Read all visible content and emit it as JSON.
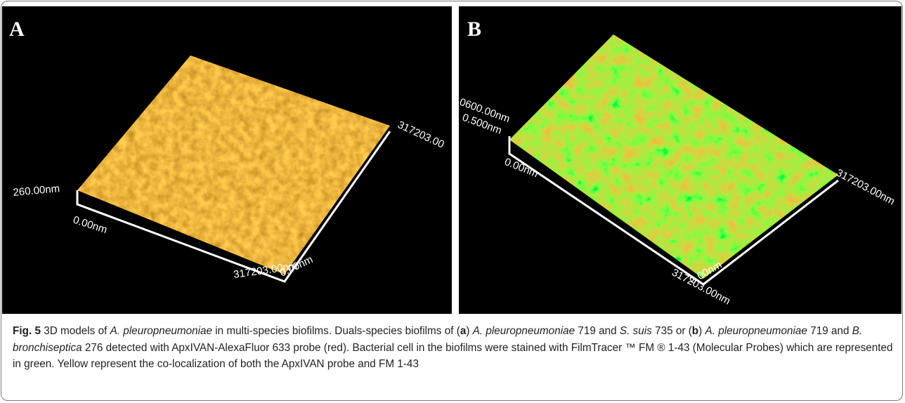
{
  "figure": {
    "panels": [
      {
        "label": "A",
        "axis_labels": [
          "260.00nm",
          "0.00nm",
          "317203.00nm",
          "0.00nm",
          "317203.00"
        ]
      },
      {
        "label": "B",
        "axis_labels": [
          "0600.00nm",
          "0.500nm",
          "0.00nm",
          "317203.00nm",
          "317203.00nm",
          "0.00nm"
        ]
      }
    ],
    "caption": [
      {
        "text": "Fig. 5",
        "style": "bold"
      },
      {
        "text": " 3D models of ",
        "style": "normal"
      },
      {
        "text": "A. pleuropneumoniae",
        "style": "italic"
      },
      {
        "text": " in multi-species biofilms. Duals-species biofilms of (",
        "style": "normal"
      },
      {
        "text": "a",
        "style": "bold"
      },
      {
        "text": ") ",
        "style": "normal"
      },
      {
        "text": "A. pleuropneumoniae",
        "style": "italic"
      },
      {
        "text": " 719 and ",
        "style": "normal"
      },
      {
        "text": "S. suis",
        "style": "italic"
      },
      {
        "text": " 735 or (",
        "style": "normal"
      },
      {
        "text": "b",
        "style": "bold"
      },
      {
        "text": ") ",
        "style": "normal"
      },
      {
        "text": "A. pleuropneumoniae",
        "style": "italic"
      },
      {
        "text": " 719 and ",
        "style": "normal"
      },
      {
        "text": "B. bronchiseptica",
        "style": "italic"
      },
      {
        "text": " 276 detected with ApxIVAN-AlexaFluor 633 probe (red). Bacterial cell in the biofilms were stained with FilmTracer ™ FM ® 1-43 (Molecular Probes) which are represented in green. Yellow represent the co-localization of both the ApxIVAN probe and FM 1-43",
        "style": "normal"
      }
    ]
  }
}
